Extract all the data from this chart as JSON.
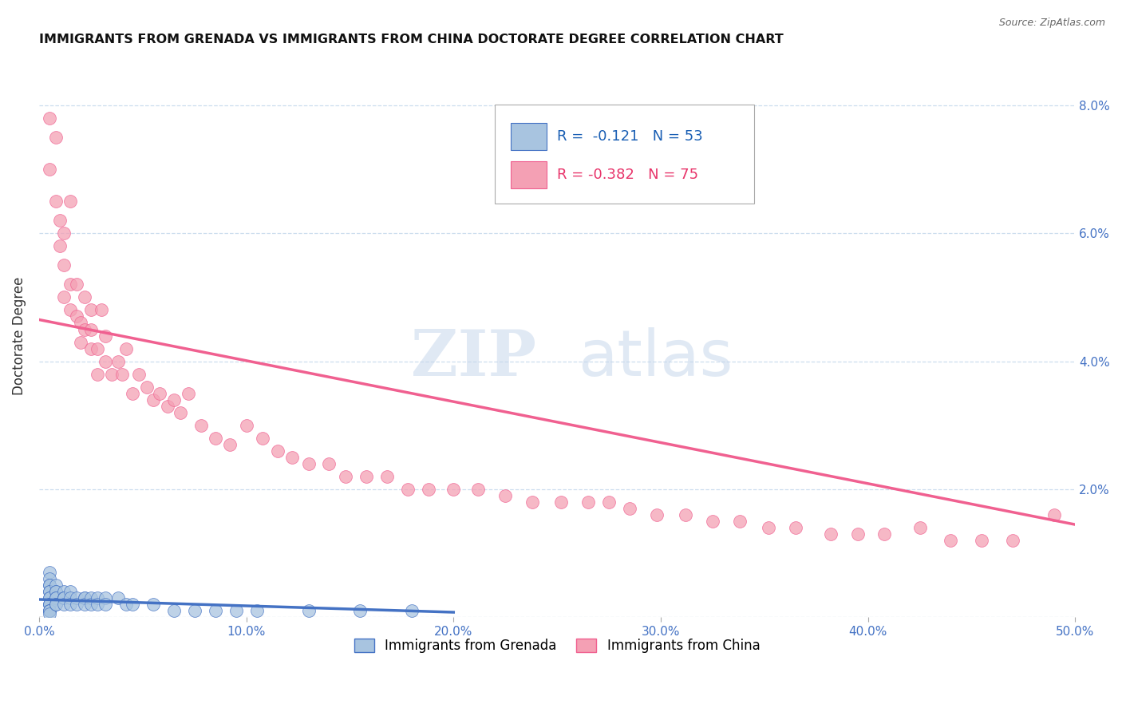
{
  "title": "IMMIGRANTS FROM GRENADA VS IMMIGRANTS FROM CHINA DOCTORATE DEGREE CORRELATION CHART",
  "source": "Source: ZipAtlas.com",
  "ylabel": "Doctorate Degree",
  "yticks": [
    0.0,
    0.02,
    0.04,
    0.06,
    0.08
  ],
  "ytick_labels": [
    "",
    "2.0%",
    "4.0%",
    "6.0%",
    "8.0%"
  ],
  "xticks": [
    0.0,
    0.1,
    0.2,
    0.3,
    0.4,
    0.5
  ],
  "xtick_labels": [
    "0.0%",
    "10.0%",
    "20.0%",
    "30.0%",
    "40.0%",
    "50.0%"
  ],
  "xlim": [
    0.0,
    0.5
  ],
  "ylim": [
    0.0,
    0.088
  ],
  "legend_grenada": "Immigrants from Grenada",
  "legend_china": "Immigrants from China",
  "R_grenada": "-0.121",
  "N_grenada": "53",
  "R_china": "-0.382",
  "N_china": "75",
  "color_grenada": "#a8c4e0",
  "color_china": "#f4a0b4",
  "color_trend_grenada": "#4472c4",
  "color_trend_china": "#f06090",
  "color_diag": "#cccccc",
  "background_color": "#ffffff",
  "watermark_zip": "ZIP",
  "watermark_atlas": "atlas",
  "grenada_x": [
    0.005,
    0.005,
    0.005,
    0.005,
    0.005,
    0.005,
    0.005,
    0.005,
    0.005,
    0.005,
    0.005,
    0.005,
    0.005,
    0.005,
    0.005,
    0.008,
    0.008,
    0.008,
    0.008,
    0.008,
    0.008,
    0.008,
    0.012,
    0.012,
    0.012,
    0.012,
    0.012,
    0.015,
    0.015,
    0.015,
    0.018,
    0.018,
    0.022,
    0.022,
    0.022,
    0.025,
    0.025,
    0.028,
    0.028,
    0.032,
    0.032,
    0.038,
    0.042,
    0.045,
    0.055,
    0.065,
    0.075,
    0.085,
    0.095,
    0.105,
    0.13,
    0.155,
    0.18
  ],
  "grenada_y": [
    0.007,
    0.006,
    0.005,
    0.005,
    0.004,
    0.004,
    0.003,
    0.003,
    0.002,
    0.002,
    0.002,
    0.001,
    0.001,
    0.001,
    0.0005,
    0.005,
    0.004,
    0.004,
    0.003,
    0.003,
    0.002,
    0.002,
    0.004,
    0.003,
    0.003,
    0.003,
    0.002,
    0.004,
    0.003,
    0.002,
    0.003,
    0.002,
    0.003,
    0.003,
    0.002,
    0.003,
    0.002,
    0.003,
    0.002,
    0.003,
    0.002,
    0.003,
    0.002,
    0.002,
    0.002,
    0.001,
    0.001,
    0.001,
    0.001,
    0.001,
    0.001,
    0.001,
    0.001
  ],
  "china_x": [
    0.005,
    0.005,
    0.008,
    0.008,
    0.01,
    0.01,
    0.012,
    0.012,
    0.012,
    0.015,
    0.015,
    0.015,
    0.018,
    0.018,
    0.02,
    0.02,
    0.022,
    0.022,
    0.025,
    0.025,
    0.025,
    0.028,
    0.028,
    0.03,
    0.032,
    0.032,
    0.035,
    0.038,
    0.04,
    0.042,
    0.045,
    0.048,
    0.052,
    0.055,
    0.058,
    0.062,
    0.065,
    0.068,
    0.072,
    0.078,
    0.085,
    0.092,
    0.1,
    0.108,
    0.115,
    0.122,
    0.13,
    0.14,
    0.148,
    0.158,
    0.168,
    0.178,
    0.188,
    0.2,
    0.212,
    0.225,
    0.238,
    0.252,
    0.265,
    0.275,
    0.285,
    0.298,
    0.312,
    0.325,
    0.338,
    0.352,
    0.365,
    0.382,
    0.395,
    0.408,
    0.425,
    0.44,
    0.455,
    0.47,
    0.49
  ],
  "china_y": [
    0.078,
    0.07,
    0.075,
    0.065,
    0.062,
    0.058,
    0.06,
    0.055,
    0.05,
    0.052,
    0.048,
    0.065,
    0.047,
    0.052,
    0.046,
    0.043,
    0.045,
    0.05,
    0.045,
    0.042,
    0.048,
    0.042,
    0.038,
    0.048,
    0.04,
    0.044,
    0.038,
    0.04,
    0.038,
    0.042,
    0.035,
    0.038,
    0.036,
    0.034,
    0.035,
    0.033,
    0.034,
    0.032,
    0.035,
    0.03,
    0.028,
    0.027,
    0.03,
    0.028,
    0.026,
    0.025,
    0.024,
    0.024,
    0.022,
    0.022,
    0.022,
    0.02,
    0.02,
    0.02,
    0.02,
    0.019,
    0.018,
    0.018,
    0.018,
    0.018,
    0.017,
    0.016,
    0.016,
    0.015,
    0.015,
    0.014,
    0.014,
    0.013,
    0.013,
    0.013,
    0.014,
    0.012,
    0.012,
    0.012,
    0.016
  ],
  "trend_grenada_x0": 0.0,
  "trend_grenada_y0": 0.0028,
  "trend_grenada_x1": 0.2,
  "trend_grenada_y1": 0.0008,
  "trend_china_x0": 0.0,
  "trend_china_y0": 0.0465,
  "trend_china_x1": 0.5,
  "trend_china_y1": 0.0145
}
